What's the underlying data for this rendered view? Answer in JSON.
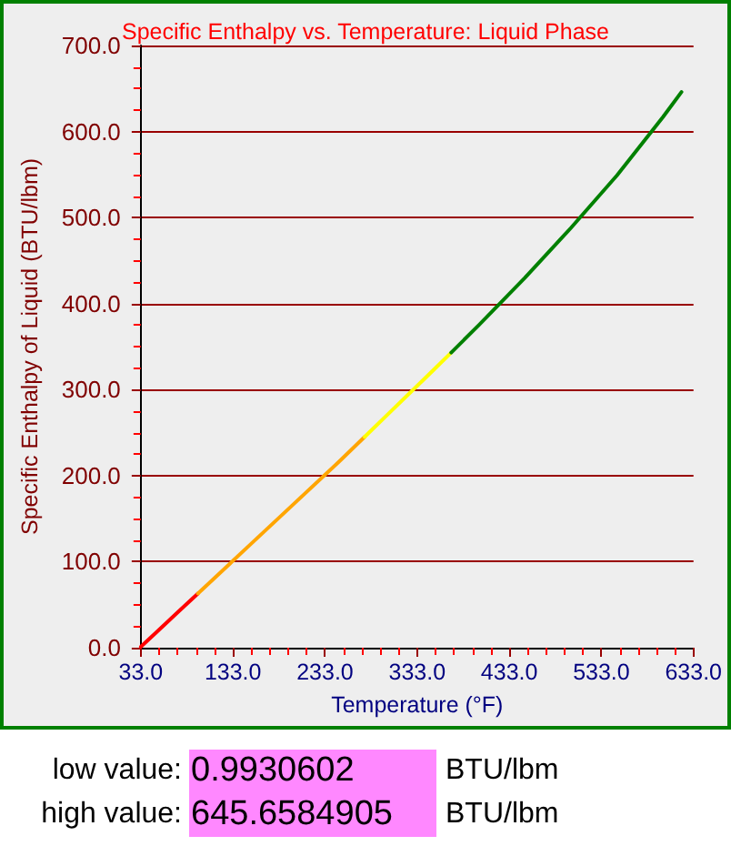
{
  "chart_data": {
    "type": "line",
    "title": "Specific Enthalpy vs. Temperature: Liquid Phase",
    "xlabel": "Temperature (°F)",
    "ylabel": "Specific Enthalpy of Liquid (BTU/lbm)",
    "series": [
      {
        "color": "#ff0000",
        "x": [
          33,
          50,
          75,
          95
        ],
        "values": [
          1,
          18,
          43,
          63
        ]
      },
      {
        "color": "#ffa500",
        "x": [
          95,
          150,
          200,
          250,
          276
        ],
        "values": [
          63,
          118,
          168,
          218,
          245
        ]
      },
      {
        "color": "#ffff00",
        "x": [
          276,
          300,
          350,
          370
        ],
        "values": [
          245,
          270,
          322,
          343
        ]
      },
      {
        "color": "#008000",
        "x": [
          370,
          400,
          450,
          500,
          550,
          600,
          620
        ],
        "values": [
          343,
          375,
          430,
          488,
          549,
          617,
          646
        ]
      }
    ],
    "xlim": [
      33,
      633
    ],
    "ylim": [
      0,
      700
    ],
    "xticks": [
      {
        "value": 33,
        "label": "33.0"
      },
      {
        "value": 133,
        "label": "133.0"
      },
      {
        "value": 233,
        "label": "233.0"
      },
      {
        "value": 333,
        "label": "333.0"
      },
      {
        "value": 433,
        "label": "433.0"
      },
      {
        "value": 533,
        "label": "533.0"
      },
      {
        "value": 633,
        "label": "633.0"
      }
    ],
    "yticks": [
      {
        "value": 0,
        "label": "0.0"
      },
      {
        "value": 100,
        "label": "100.0"
      },
      {
        "value": 200,
        "label": "200.0"
      },
      {
        "value": 300,
        "label": "300.0"
      },
      {
        "value": 400,
        "label": "400.0"
      },
      {
        "value": 500,
        "label": "500.0"
      },
      {
        "value": 600,
        "label": "600.0"
      },
      {
        "value": 700,
        "label": "700.0"
      }
    ],
    "grid": "y",
    "marker": "none",
    "line_style": "solid",
    "annotations": [
      "low value:",
      "0.9930602",
      "BTU/lbm",
      "high value:",
      "645.6584905",
      "BTU/lbm"
    ]
  }
}
